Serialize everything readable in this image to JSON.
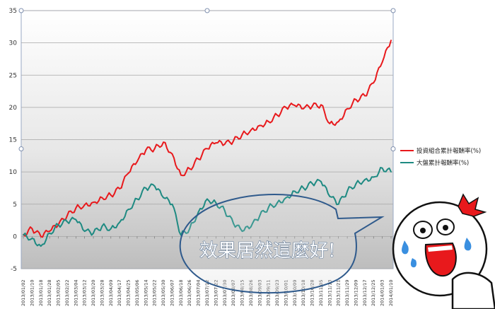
{
  "chart_data": {
    "type": "line",
    "title": "",
    "xlabel": "",
    "ylabel": "",
    "ylim": [
      -5,
      35
    ],
    "yticks": [
      -5,
      0,
      5,
      10,
      15,
      20,
      25,
      30,
      35
    ],
    "grid": true,
    "legend": "right",
    "x": [
      "2013/01/02",
      "2013/01/10",
      "2013/01/18",
      "2013/01/28",
      "2013/02/05",
      "2013/02/22",
      "2013/03/04",
      "2013/03/12",
      "2013/03/20",
      "2013/03/28",
      "2013/04/09",
      "2013/04/17",
      "2013/04/25",
      "2013/05/06",
      "2013/05/14",
      "2013/05/22",
      "2013/05/30",
      "2013/06/07",
      "2013/06/18",
      "2013/06/26",
      "2013/07/04",
      "2013/07/12",
      "2013/07/22",
      "2013/07/30",
      "2013/08/07",
      "2013/08/15",
      "2013/08/26",
      "2013/09/03",
      "2013/09/11",
      "2013/09/23",
      "2013/10/01",
      "2013/10/09",
      "2013/10/18",
      "2013/10/28",
      "2013/11/05",
      "2013/11/13",
      "2013/11/21",
      "2013/11/29",
      "2013/12/09",
      "2013/12/17",
      "2013/12/25",
      "2014/01/03",
      "2014/01/10"
    ],
    "series": [
      {
        "name": "投資組合累計報酬率(%)",
        "color": "#e8191c",
        "values": [
          0.3,
          1.2,
          0.0,
          0.8,
          1.8,
          3.2,
          4.4,
          4.9,
          5.3,
          6.0,
          6.4,
          7.4,
          9.8,
          11.6,
          13.4,
          13.6,
          14.6,
          12.8,
          9.5,
          10.5,
          12.0,
          13.6,
          14.5,
          14.3,
          14.8,
          15.8,
          16.5,
          17.2,
          17.8,
          18.8,
          20.0,
          20.3,
          19.8,
          20.2,
          20.4,
          17.5,
          17.8,
          19.8,
          21.2,
          21.8,
          23.8,
          27.0,
          30.4
        ]
      },
      {
        "name": "大盤累計報酬率(%)",
        "color": "#1e8a82",
        "values": [
          0.2,
          -0.3,
          -1.5,
          0.5,
          1.8,
          2.3,
          2.6,
          0.8,
          0.5,
          1.6,
          1.2,
          2.2,
          4.2,
          5.8,
          7.5,
          7.8,
          6.0,
          5.0,
          0.2,
          1.2,
          3.8,
          5.8,
          5.2,
          4.0,
          2.0,
          0.8,
          1.5,
          3.2,
          4.5,
          5.2,
          6.0,
          7.0,
          7.5,
          8.2,
          8.5,
          6.2,
          5.0,
          7.0,
          8.2,
          8.8,
          9.2,
          10.6,
          10.0
        ]
      }
    ]
  },
  "annotation": {
    "bubble_text": "效果居然這麼好!"
  }
}
